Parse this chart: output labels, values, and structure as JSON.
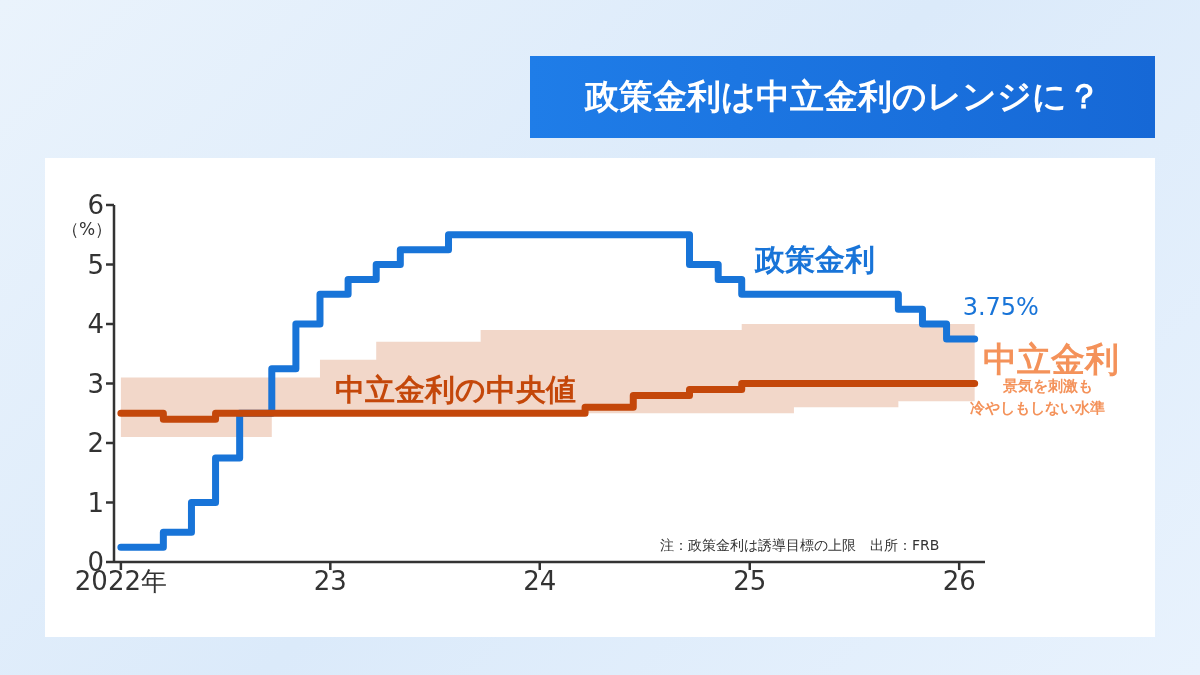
{
  "chart_data": {
    "type": "step",
    "title": "政策金利は中立金利のレンジに？",
    "ylabel": "（%）",
    "xlim": [
      "2021-12-20",
      "2026-02-15"
    ],
    "xticks": [
      {
        "value": "2022-01-01",
        "label": "2022年"
      },
      {
        "value": "2023-01-01",
        "label": "23"
      },
      {
        "value": "2024-01-01",
        "label": "24"
      },
      {
        "value": "2025-01-01",
        "label": "25"
      },
      {
        "value": "2026-01-01",
        "label": "26"
      }
    ],
    "ylim": [
      0,
      6
    ],
    "yticks": [
      0,
      1,
      2,
      3,
      4,
      5,
      6
    ],
    "grid": false,
    "legend": false,
    "series": [
      {
        "name": "政策金利",
        "color": "#1874d8",
        "x": [
          "2022-01-01",
          "2022-03-16",
          "2022-05-04",
          "2022-06-15",
          "2022-07-27",
          "2022-09-21",
          "2022-11-02",
          "2022-12-14",
          "2023-02-01",
          "2023-03-22",
          "2023-05-03",
          "2023-07-26",
          "2024-09-18",
          "2024-11-07",
          "2024-12-18",
          "2025-09-17",
          "2025-10-29",
          "2025-12-10",
          "2026-01-28"
        ],
        "values": [
          0.25,
          0.5,
          1.0,
          1.75,
          2.5,
          3.25,
          4.0,
          4.5,
          4.75,
          5.0,
          5.25,
          5.5,
          5.0,
          4.75,
          4.5,
          4.25,
          4.0,
          3.75,
          3.75
        ]
      },
      {
        "name": "中立金利の中央値",
        "color": "#c4470a",
        "x": [
          "2022-01-01",
          "2022-03-16",
          "2022-06-15",
          "2022-09-21",
          "2022-12-14",
          "2023-03-22",
          "2023-09-20",
          "2024-03-20",
          "2024-06-12",
          "2024-09-18",
          "2024-12-18",
          "2025-03-19",
          "2025-09-17",
          "2026-01-28"
        ],
        "values": [
          2.5,
          2.4,
          2.5,
          2.5,
          2.5,
          2.5,
          2.5,
          2.6,
          2.8,
          2.9,
          3.0,
          3.0,
          3.0,
          3.0
        ],
        "lower": [
          2.1,
          2.1,
          2.1,
          2.5,
          2.5,
          2.5,
          2.5,
          2.5,
          2.5,
          2.5,
          2.5,
          2.6,
          2.7,
          2.7
        ],
        "upper": [
          3.1,
          3.1,
          3.1,
          3.1,
          3.4,
          3.7,
          3.9,
          3.9,
          3.9,
          3.9,
          4.0,
          4.0,
          4.0,
          4.0
        ]
      }
    ],
    "annotations": [
      {
        "text": "3.75%",
        "x": "2026-01-28",
        "y": 3.75
      },
      "中立金利",
      "景気を刺激も",
      "冷やしもしない水準",
      "注：政策金利は誘導目標の上限　出所：FRB"
    ]
  }
}
